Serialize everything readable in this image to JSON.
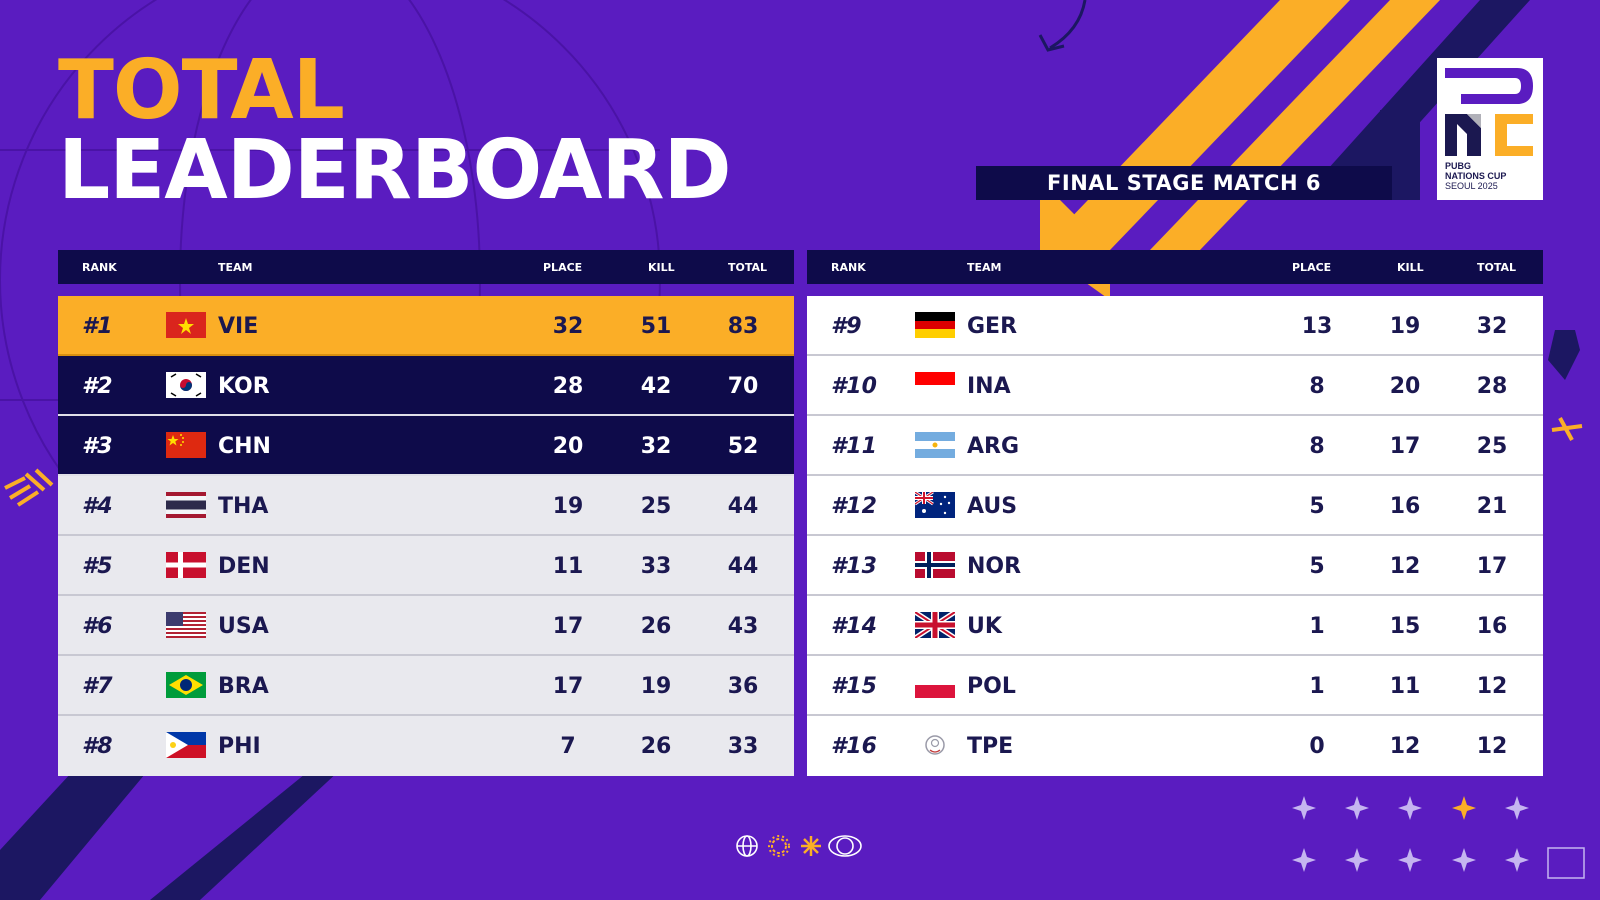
{
  "title": {
    "line1": "TOTAL",
    "line2": "LEADERBOARD"
  },
  "subtitle": "FINAL STAGE MATCH 6",
  "logo": {
    "line1": "PUBG",
    "line2": "NATIONS CUP",
    "line3": "SEOUL 2025"
  },
  "columns": {
    "rank": "RANK",
    "team": "TEAM",
    "place": "PLACE",
    "kill": "KILL",
    "total": "TOTAL"
  },
  "colors": {
    "background": "#5a1cc0",
    "accent": "#fbae27",
    "navy": "#0e0b4a",
    "white": "#ffffff"
  },
  "left_rows": [
    {
      "rank": "#1",
      "team": "VIE",
      "flag": "vietnam-flag",
      "place": "32",
      "kill": "51",
      "total": "83"
    },
    {
      "rank": "#2",
      "team": "KOR",
      "flag": "korea-flag",
      "place": "28",
      "kill": "42",
      "total": "70"
    },
    {
      "rank": "#3",
      "team": "CHN",
      "flag": "china-flag",
      "place": "20",
      "kill": "32",
      "total": "52"
    },
    {
      "rank": "#4",
      "team": "THA",
      "flag": "thailand-flag",
      "place": "19",
      "kill": "25",
      "total": "44"
    },
    {
      "rank": "#5",
      "team": "DEN",
      "flag": "denmark-flag",
      "place": "11",
      "kill": "33",
      "total": "44"
    },
    {
      "rank": "#6",
      "team": "USA",
      "flag": "usa-flag",
      "place": "17",
      "kill": "26",
      "total": "43"
    },
    {
      "rank": "#7",
      "team": "BRA",
      "flag": "brazil-flag",
      "place": "17",
      "kill": "19",
      "total": "36"
    },
    {
      "rank": "#8",
      "team": "PHI",
      "flag": "philippines-flag",
      "place": "7",
      "kill": "26",
      "total": "33"
    }
  ],
  "right_rows": [
    {
      "rank": "#9",
      "team": "GER",
      "flag": "germany-flag",
      "place": "13",
      "kill": "19",
      "total": "32"
    },
    {
      "rank": "#10",
      "team": "INA",
      "flag": "indonesia-flag",
      "place": "8",
      "kill": "20",
      "total": "28"
    },
    {
      "rank": "#11",
      "team": "ARG",
      "flag": "argentina-flag",
      "place": "8",
      "kill": "17",
      "total": "25"
    },
    {
      "rank": "#12",
      "team": "AUS",
      "flag": "australia-flag",
      "place": "5",
      "kill": "16",
      "total": "21"
    },
    {
      "rank": "#13",
      "team": "NOR",
      "flag": "norway-flag",
      "place": "5",
      "kill": "12",
      "total": "17"
    },
    {
      "rank": "#14",
      "team": "UK",
      "flag": "uk-flag",
      "place": "1",
      "kill": "15",
      "total": "16"
    },
    {
      "rank": "#15",
      "team": "POL",
      "flag": "poland-flag",
      "place": "1",
      "kill": "11",
      "total": "12"
    },
    {
      "rank": "#16",
      "team": "TPE",
      "flag": "chinese-taipei-flag",
      "place": "0",
      "kill": "12",
      "total": "12"
    }
  ],
  "footer_icons": [
    "globe-icon",
    "sun-icon",
    "spark-icon",
    "orb-icon"
  ]
}
